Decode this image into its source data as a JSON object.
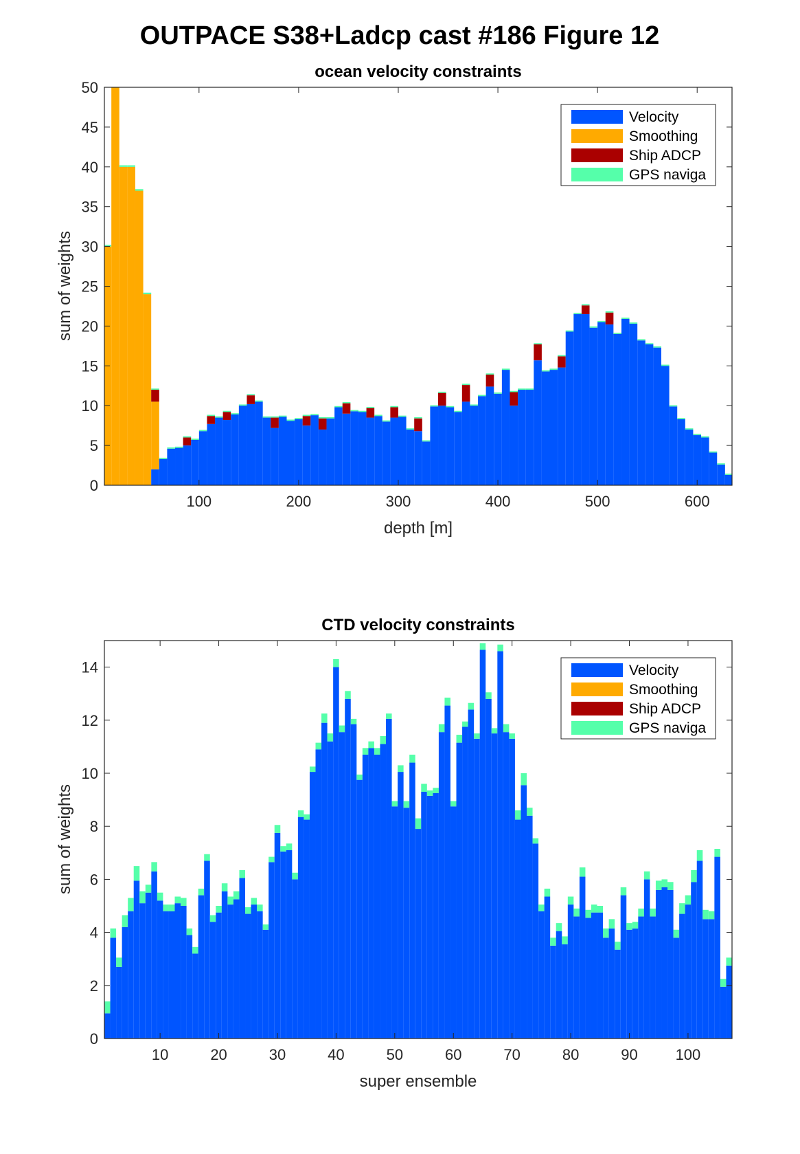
{
  "figure_title": "OUTPACE S38+Ladcp cast #186  Figure 12",
  "colors": {
    "velocity": "#0055FF",
    "smoothing": "#FFAA00",
    "ship_adcp": "#AA0000",
    "gps": "#55FFAA"
  },
  "chart_data": [
    {
      "type": "bar",
      "stacked": true,
      "title": "ocean velocity constraints",
      "xlabel": "depth [m]",
      "ylabel": "sum of weights",
      "xlim": [
        5,
        635
      ],
      "ylim": [
        0,
        50
      ],
      "xticks": [
        100,
        200,
        300,
        400,
        500,
        600
      ],
      "yticks": [
        0,
        5,
        10,
        15,
        20,
        25,
        30,
        35,
        40,
        45,
        50
      ],
      "grid": false,
      "legend": "top-right",
      "bin_width": 8,
      "x": [
        8,
        16,
        24,
        32,
        40,
        48,
        56,
        64,
        72,
        80,
        88,
        96,
        104,
        112,
        120,
        128,
        136,
        144,
        152,
        160,
        168,
        176,
        184,
        192,
        200,
        208,
        216,
        224,
        232,
        240,
        248,
        256,
        264,
        272,
        280,
        288,
        296,
        304,
        312,
        320,
        328,
        336,
        344,
        352,
        360,
        368,
        376,
        384,
        392,
        400,
        408,
        416,
        424,
        432,
        440,
        448,
        456,
        464,
        472,
        480,
        488,
        496,
        504,
        512,
        520,
        528,
        536,
        544,
        552,
        560,
        568,
        576,
        584,
        592,
        600,
        608,
        616,
        624,
        632
      ],
      "series": [
        {
          "name": "Velocity",
          "values": [
            0,
            0,
            0,
            0,
            0,
            0,
            2,
            3.3,
            4.6,
            4.7,
            5,
            5.7,
            6.8,
            7.7,
            8.5,
            8.2,
            8.9,
            10,
            10.2,
            10.5,
            8.5,
            7.2,
            8.6,
            8.1,
            8.3,
            7.5,
            8.8,
            7,
            8.4,
            9.8,
            9,
            9.3,
            9.2,
            8.5,
            8.7,
            8,
            8.5,
            8.6,
            7,
            6.8,
            5.5,
            9.9,
            10,
            9.8,
            9.2,
            10.5,
            10,
            11.2,
            12.4,
            11.5,
            14.5,
            10,
            12,
            12,
            15.7,
            14.3,
            14.5,
            14.8,
            19.3,
            21.5,
            21.5,
            19.8,
            20.5,
            20.2,
            19,
            20.9,
            20.3,
            18.2,
            17.7,
            17.3,
            15,
            9.9,
            8.3,
            7,
            6.3,
            6,
            4.1,
            2.6,
            1.3
          ]
        },
        {
          "name": "Smoothing",
          "values": [
            30,
            50,
            40,
            40,
            37,
            24,
            8.5,
            0,
            0,
            0,
            0,
            0,
            0,
            0,
            0,
            0,
            0,
            0,
            0,
            0,
            0,
            0,
            0,
            0,
            0,
            0,
            0,
            0,
            0,
            0,
            0,
            0,
            0,
            0,
            0,
            0,
            0,
            0,
            0,
            0,
            0,
            0,
            0,
            0,
            0,
            0,
            0,
            0,
            0,
            0,
            0,
            0,
            0,
            0,
            0,
            0,
            0,
            0,
            0,
            0,
            0,
            0,
            0,
            0,
            0,
            0,
            0,
            0,
            0,
            0,
            0,
            0,
            0,
            0,
            0,
            0,
            0,
            0,
            0
          ]
        },
        {
          "name": "Ship ADCP",
          "values": [
            0,
            0,
            0,
            0,
            0,
            0,
            1.5,
            0,
            0,
            0,
            1,
            0,
            0,
            1,
            0,
            1,
            0,
            0,
            1.1,
            0,
            0,
            1.3,
            0,
            0,
            0,
            1.2,
            0,
            1.4,
            0,
            0,
            1.3,
            0,
            0,
            1.2,
            0,
            0,
            1.3,
            0,
            0,
            1.6,
            0,
            0,
            1.6,
            0,
            0,
            2.1,
            0,
            0,
            1.5,
            0,
            0,
            1.7,
            0,
            0,
            2,
            0,
            0,
            1.4,
            0,
            0,
            1.1,
            0,
            0,
            1.5,
            0,
            0,
            0,
            0,
            0,
            0,
            0,
            0,
            0,
            0,
            0,
            0,
            0,
            0,
            0
          ]
        },
        {
          "name": "GPS naviga",
          "values": [
            0.2,
            0.2,
            0.2,
            0.2,
            0.2,
            0.2,
            0.15,
            0.15,
            0.15,
            0.15,
            0.15,
            0.15,
            0.15,
            0.15,
            0.15,
            0.15,
            0.15,
            0.15,
            0.15,
            0.15,
            0.15,
            0.15,
            0.15,
            0.15,
            0.15,
            0.15,
            0.15,
            0.15,
            0.15,
            0.15,
            0.15,
            0.15,
            0.15,
            0.15,
            0.15,
            0.15,
            0.15,
            0.15,
            0.15,
            0.15,
            0.15,
            0.15,
            0.15,
            0.15,
            0.15,
            0.15,
            0.15,
            0.15,
            0.15,
            0.15,
            0.15,
            0.15,
            0.15,
            0.15,
            0.15,
            0.15,
            0.15,
            0.15,
            0.15,
            0.15,
            0.15,
            0.15,
            0.15,
            0.15,
            0.15,
            0.15,
            0.15,
            0.15,
            0.15,
            0.15,
            0.15,
            0.15,
            0.15,
            0.15,
            0.15,
            0.15,
            0.15,
            0.15,
            0.15
          ]
        }
      ]
    },
    {
      "type": "bar",
      "stacked": true,
      "title": "CTD velocity constraints",
      "xlabel": "super ensemble",
      "ylabel": "sum of weights",
      "xlim": [
        0.5,
        107.5
      ],
      "ylim": [
        0,
        15
      ],
      "xticks": [
        10,
        20,
        30,
        40,
        50,
        60,
        70,
        80,
        90,
        100
      ],
      "yticks": [
        0,
        2,
        4,
        6,
        8,
        10,
        12,
        14
      ],
      "grid": false,
      "legend": "top-right",
      "bin_width": 1,
      "x": [
        1,
        2,
        3,
        4,
        5,
        6,
        7,
        8,
        9,
        10,
        11,
        12,
        13,
        14,
        15,
        16,
        17,
        18,
        19,
        20,
        21,
        22,
        23,
        24,
        25,
        26,
        27,
        28,
        29,
        30,
        31,
        32,
        33,
        34,
        35,
        36,
        37,
        38,
        39,
        40,
        41,
        42,
        43,
        44,
        45,
        46,
        47,
        48,
        49,
        50,
        51,
        52,
        53,
        54,
        55,
        56,
        57,
        58,
        59,
        60,
        61,
        62,
        63,
        64,
        65,
        66,
        67,
        68,
        69,
        70,
        71,
        72,
        73,
        74,
        75,
        76,
        77,
        78,
        79,
        80,
        81,
        82,
        83,
        84,
        85,
        86,
        87,
        88,
        89,
        90,
        91,
        92,
        93,
        94,
        95,
        96,
        97,
        98,
        99,
        100,
        101,
        102,
        103,
        104,
        105,
        106,
        107
      ],
      "series": [
        {
          "name": "Velocity",
          "values": [
            0.95,
            3.8,
            2.7,
            4.2,
            4.8,
            5.95,
            5.1,
            5.5,
            6.3,
            5.2,
            4.8,
            4.8,
            5.1,
            5,
            3.9,
            3.2,
            5.4,
            6.7,
            4.4,
            4.75,
            5.55,
            5.05,
            5.25,
            6.05,
            4.7,
            5.05,
            4.8,
            4.1,
            6.65,
            7.75,
            7.05,
            7.1,
            6,
            8.35,
            8.25,
            10.05,
            10.9,
            11.9,
            11.2,
            14,
            11.55,
            12.8,
            11.85,
            9.75,
            10.7,
            10.95,
            10.7,
            11.1,
            12.05,
            8.75,
            10.05,
            8.7,
            10.4,
            7.9,
            9.3,
            9.15,
            9.25,
            11.55,
            12.55,
            8.75,
            11.15,
            11.75,
            12.4,
            11.3,
            14.65,
            12.8,
            11.5,
            14.6,
            11.55,
            11.3,
            8.25,
            9.55,
            8.4,
            7.35,
            4.8,
            5.35,
            3.5,
            4.05,
            3.55,
            5.05,
            4.6,
            6.1,
            4.55,
            4.75,
            4.75,
            3.8,
            4.15,
            3.35,
            5.4,
            4.1,
            4.15,
            4.6,
            6,
            4.6,
            5.6,
            5.7,
            5.6,
            3.8,
            4.7,
            5.05,
            5.9,
            6.7,
            4.5,
            4.5,
            6.85,
            1.95,
            2.75
          ]
        },
        {
          "name": "Smoothing",
          "values": [
            0,
            0,
            0,
            0,
            0,
            0,
            0,
            0,
            0,
            0,
            0,
            0,
            0,
            0,
            0,
            0,
            0,
            0,
            0,
            0,
            0,
            0,
            0,
            0,
            0,
            0,
            0,
            0,
            0,
            0,
            0,
            0,
            0,
            0,
            0,
            0,
            0,
            0,
            0,
            0,
            0,
            0,
            0,
            0,
            0,
            0,
            0,
            0,
            0,
            0,
            0,
            0,
            0,
            0,
            0,
            0,
            0,
            0,
            0,
            0,
            0,
            0,
            0,
            0,
            0,
            0,
            0,
            0,
            0,
            0,
            0,
            0,
            0,
            0,
            0,
            0,
            0,
            0,
            0,
            0,
            0,
            0,
            0,
            0,
            0,
            0,
            0,
            0,
            0,
            0,
            0,
            0,
            0,
            0,
            0,
            0,
            0,
            0,
            0,
            0,
            0,
            0,
            0,
            0,
            0,
            0,
            0
          ]
        },
        {
          "name": "Ship ADCP",
          "values": [
            0,
            0,
            0,
            0,
            0,
            0,
            0,
            0,
            0,
            0,
            0,
            0,
            0,
            0,
            0,
            0,
            0,
            0,
            0,
            0,
            0,
            0,
            0,
            0,
            0,
            0,
            0,
            0,
            0,
            0,
            0,
            0,
            0,
            0,
            0,
            0,
            0,
            0,
            0,
            0,
            0,
            0,
            0,
            0,
            0,
            0,
            0,
            0,
            0,
            0,
            0,
            0,
            0,
            0,
            0,
            0,
            0,
            0,
            0,
            0,
            0,
            0,
            0,
            0,
            0,
            0,
            0,
            0,
            0,
            0,
            0,
            0,
            0,
            0,
            0,
            0,
            0,
            0,
            0,
            0,
            0,
            0,
            0,
            0,
            0,
            0,
            0,
            0,
            0,
            0,
            0,
            0,
            0,
            0,
            0,
            0,
            0,
            0,
            0,
            0,
            0,
            0,
            0,
            0,
            0,
            0,
            0
          ]
        },
        {
          "name": "GPS naviga",
          "values": [
            0.45,
            0.35,
            0.35,
            0.45,
            0.5,
            0.55,
            0.45,
            0.3,
            0.35,
            0.3,
            0.25,
            0.25,
            0.25,
            0.3,
            0.25,
            0.25,
            0.25,
            0.25,
            0.25,
            0.25,
            0.3,
            0.3,
            0.3,
            0.3,
            0.25,
            0.25,
            0.25,
            0.2,
            0.2,
            0.3,
            0.2,
            0.25,
            0.25,
            0.25,
            0.2,
            0.2,
            0.25,
            0.35,
            0.3,
            0.3,
            0.25,
            0.3,
            0.2,
            0.2,
            0.25,
            0.25,
            0.25,
            0.3,
            0.2,
            0.2,
            0.25,
            0.25,
            0.3,
            0.4,
            0.3,
            0.2,
            0.2,
            0.3,
            0.3,
            0.2,
            0.3,
            0.2,
            0.25,
            0.2,
            0.25,
            0.25,
            0.2,
            0.25,
            0.3,
            0.2,
            0.35,
            0.45,
            0.3,
            0.2,
            0.25,
            0.3,
            0.3,
            0.3,
            0.3,
            0.3,
            0.3,
            0.35,
            0.3,
            0.3,
            0.25,
            0.35,
            0.35,
            0.3,
            0.3,
            0.25,
            0.25,
            0.3,
            0.3,
            0.3,
            0.35,
            0.3,
            0.3,
            0.3,
            0.4,
            0.35,
            0.45,
            0.4,
            0.35,
            0.3,
            0.3,
            0.3,
            0.3
          ]
        }
      ]
    }
  ]
}
